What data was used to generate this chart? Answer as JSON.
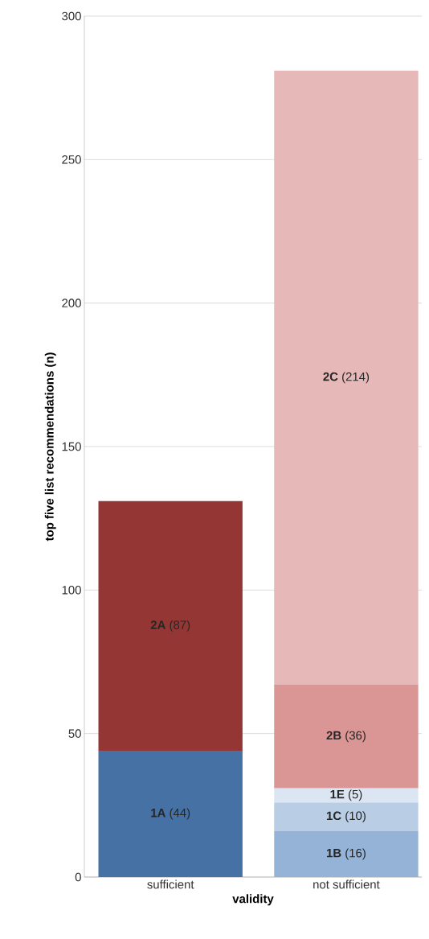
{
  "chart_data": {
    "type": "bar",
    "stacked": true,
    "xlabel": "validity",
    "ylabel": "top five list recommendations (n)",
    "categories": [
      "sufficient",
      "not sufficient"
    ],
    "series": [
      {
        "color": "#4671a5",
        "values": [
          44,
          null
        ],
        "value_labels": [
          "**1A** (44)",
          null
        ]
      },
      {
        "color": "#943634",
        "values": [
          87,
          null
        ],
        "value_labels": [
          "**2A** (87)",
          null
        ]
      },
      {
        "color": "#95b3d7",
        "values": [
          null,
          16
        ],
        "value_labels": [
          null,
          "**1B** (16)"
        ]
      },
      {
        "color": "#b9cde5",
        "values": [
          null,
          10
        ],
        "value_labels": [
          null,
          "**1C** (10)"
        ]
      },
      {
        "color": "#dce6f2",
        "values": [
          null,
          5
        ],
        "value_labels": [
          null,
          "**1E** (5)"
        ]
      },
      {
        "color": "#d99694",
        "values": [
          null,
          36
        ],
        "value_labels": [
          null,
          "**2B** (36)"
        ]
      },
      {
        "color": "#e6b9b8",
        "values": [
          null,
          214
        ],
        "value_labels": [
          null,
          "**2C** (214)"
        ]
      }
    ],
    "ylim": [
      0,
      300
    ],
    "yticks": [
      0,
      50,
      100,
      150,
      200,
      250,
      300
    ],
    "grid": "y"
  }
}
